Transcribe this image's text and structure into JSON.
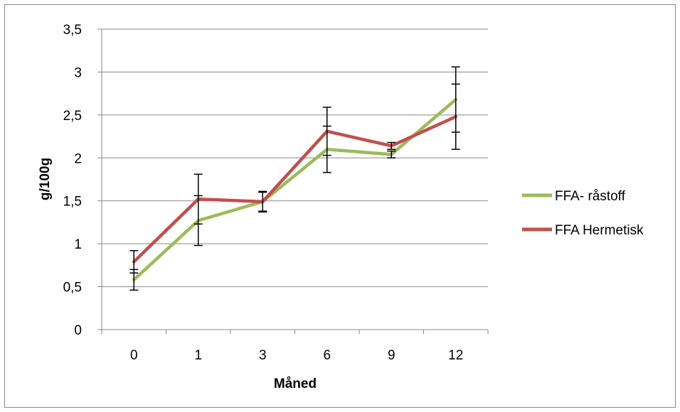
{
  "chart_data": {
    "type": "line",
    "categories": [
      "0",
      "1",
      "3",
      "6",
      "9",
      "12"
    ],
    "series": [
      {
        "name": "FFA- råstoff",
        "color": "#9BBB59",
        "values": [
          0.58,
          1.27,
          1.49,
          2.1,
          2.04,
          2.68
        ],
        "error": [
          0.12,
          0.29,
          0.11,
          0.27,
          0.04,
          0.38
        ]
      },
      {
        "name": "FFA Hermetisk",
        "color": "#C0504D",
        "values": [
          0.79,
          1.52,
          1.49,
          2.31,
          2.14,
          2.48
        ],
        "error": [
          0.13,
          0.29,
          0.12,
          0.28,
          0.04,
          0.38
        ]
      }
    ],
    "xlabel": "Måned",
    "ylabel": "g/100g",
    "ylim": [
      0,
      3.5
    ],
    "yticks": [
      0,
      0.5,
      1,
      1.5,
      2,
      2.5,
      3,
      3.5
    ],
    "ytick_labels": [
      "0",
      "0,5",
      "1",
      "1,5",
      "2",
      "2,5",
      "3",
      "3,5"
    ],
    "grid": true,
    "legend_position": "right"
  }
}
